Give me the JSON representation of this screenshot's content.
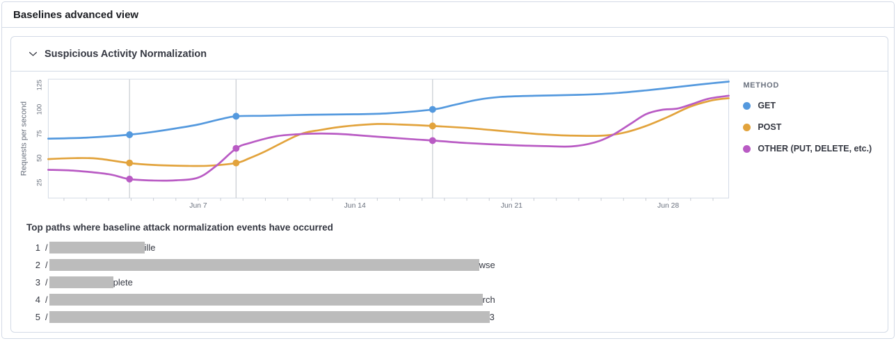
{
  "page": {
    "title": "Baselines advanced view"
  },
  "section": {
    "title": "Suspicious Activity Normalization"
  },
  "chart_data": {
    "type": "line",
    "ylabel": "Requests per second",
    "x_unit": "date (June)",
    "x_domain_days": [
      0.3,
      30.7
    ],
    "y_domain": [
      9,
      131
    ],
    "y_ticks": [
      25,
      50,
      75,
      100,
      125
    ],
    "x_ticks": [
      {
        "d": 7,
        "label": "Jun 7"
      },
      {
        "d": 14,
        "label": "Jun 14"
      },
      {
        "d": 21,
        "label": "Jun 21"
      },
      {
        "d": 28,
        "label": "Jun 28"
      }
    ],
    "grid": "off",
    "legend_position": "right",
    "series": [
      {
        "name": "GET",
        "color": "#5499DE",
        "points": [
          [
            0.3,
            70
          ],
          [
            2,
            71
          ],
          [
            3.9,
            74
          ],
          [
            5,
            77
          ],
          [
            6,
            80.5
          ],
          [
            7,
            84.5
          ],
          [
            8,
            90
          ],
          [
            8.7,
            93
          ],
          [
            10,
            93.5
          ],
          [
            12,
            94.5
          ],
          [
            14,
            95
          ],
          [
            15.5,
            96
          ],
          [
            17.5,
            100
          ],
          [
            18.5,
            105
          ],
          [
            19.5,
            110
          ],
          [
            20.5,
            112.8
          ],
          [
            22,
            114
          ],
          [
            24,
            115
          ],
          [
            25.5,
            116.5
          ],
          [
            27,
            119.5
          ],
          [
            28,
            122
          ],
          [
            29,
            124.5
          ],
          [
            30,
            127
          ],
          [
            30.7,
            128.5
          ]
        ]
      },
      {
        "name": "POST",
        "color": "#E2A33C",
        "points": [
          [
            0.3,
            49
          ],
          [
            1.5,
            50
          ],
          [
            2.5,
            49.5
          ],
          [
            3.9,
            45
          ],
          [
            5,
            43
          ],
          [
            6.5,
            42
          ],
          [
            7.5,
            42.2
          ],
          [
            8.7,
            45
          ],
          [
            9.3,
            50
          ],
          [
            10,
            57
          ],
          [
            11.5,
            74
          ],
          [
            12.5,
            79
          ],
          [
            13.5,
            82.5
          ],
          [
            15,
            85
          ],
          [
            16,
            84.5
          ],
          [
            17.5,
            83
          ],
          [
            19,
            81
          ],
          [
            20,
            79
          ],
          [
            21,
            77
          ],
          [
            22.3,
            74.5
          ],
          [
            23.5,
            73.2
          ],
          [
            25,
            73
          ],
          [
            26,
            76
          ],
          [
            27,
            83
          ],
          [
            28,
            92.5
          ],
          [
            29,
            103
          ],
          [
            30,
            109.5
          ],
          [
            30.7,
            111.5
          ]
        ]
      },
      {
        "name": "OTHER (PUT, DELETE, etc.)",
        "color": "#B95BC4",
        "points": [
          [
            0.3,
            38
          ],
          [
            1.5,
            37
          ],
          [
            3,
            33.5
          ],
          [
            3.9,
            28.5
          ],
          [
            5,
            27
          ],
          [
            6,
            27.2
          ],
          [
            7,
            30
          ],
          [
            7.8,
            42
          ],
          [
            8.7,
            60
          ],
          [
            9.3,
            65.5
          ],
          [
            10.5,
            72.5
          ],
          [
            11.5,
            74.5
          ],
          [
            12.5,
            75.2
          ],
          [
            13.5,
            74.5
          ],
          [
            15,
            72
          ],
          [
            16.5,
            69.5
          ],
          [
            17.5,
            68
          ],
          [
            19,
            65.5
          ],
          [
            21,
            63.3
          ],
          [
            22.5,
            62.3
          ],
          [
            23.7,
            62
          ],
          [
            24.7,
            66
          ],
          [
            25.5,
            73.5
          ],
          [
            26.3,
            85
          ],
          [
            27,
            95
          ],
          [
            27.7,
            99.5
          ],
          [
            28.4,
            100.8
          ],
          [
            29,
            105
          ],
          [
            29.8,
            111
          ],
          [
            30.7,
            114
          ]
        ]
      }
    ],
    "event_rules": [
      {
        "x": 3.93,
        "markers": [
          74,
          45,
          28.5
        ]
      },
      {
        "x": 8.69,
        "markers": [
          93,
          45,
          60
        ]
      },
      {
        "x": 17.47,
        "markers": [
          100,
          83,
          68
        ]
      }
    ],
    "legend": {
      "title": "METHOD",
      "items": [
        {
          "label": "GET",
          "color": "#5499DE"
        },
        {
          "label": "POST",
          "color": "#E2A33C"
        },
        {
          "label": "OTHER (PUT, DELETE, etc.)",
          "color": "#B95BC4"
        }
      ]
    }
  },
  "paths_section": {
    "title": "Top paths where baseline attack normalization events have occurred",
    "rows": [
      {
        "num": "1",
        "slash": "/",
        "redaction_width": 137,
        "suffix": "ille"
      },
      {
        "num": "2",
        "slash": "/",
        "redaction_width": 618,
        "suffix": "wse"
      },
      {
        "num": "3",
        "slash": "/",
        "redaction_width": 92,
        "suffix": "plete"
      },
      {
        "num": "4",
        "slash": "/",
        "redaction_width": 623,
        "suffix": "rch"
      },
      {
        "num": "5",
        "slash": "/",
        "redaction_width": 633,
        "suffix": "3"
      }
    ]
  },
  "colors": {
    "border": "#d3dae6",
    "axis_text": "#69707d",
    "tick_line": "#c6cad1",
    "rule_line": "#c9ccd2",
    "redaction": "#bcbcbc"
  }
}
